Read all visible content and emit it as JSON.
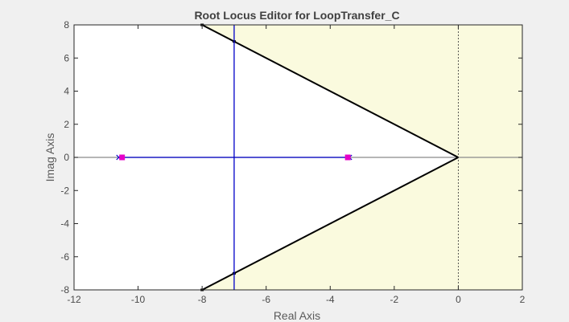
{
  "chart_data": {
    "type": "root-locus",
    "title": "Root Locus Editor for LoopTransfer_C",
    "xlabel": "Real Axis",
    "ylabel": "Imag Axis",
    "xlim": [
      -12,
      2
    ],
    "ylim": [
      -8,
      8
    ],
    "xticks": [
      -12,
      -10,
      -8,
      -6,
      -4,
      -2,
      0,
      2
    ],
    "yticks": [
      -8,
      -6,
      -4,
      -2,
      0,
      2,
      4,
      6,
      8
    ],
    "grid": false,
    "poles": [
      {
        "re": -10.6,
        "im": 0
      },
      {
        "re": -3.4,
        "im": 0
      }
    ],
    "closed_loop_poles": [
      {
        "re": -10.5,
        "im": 0
      },
      {
        "re": -3.45,
        "im": 0
      }
    ],
    "locus_branches": [
      {
        "name": "",
        "points": [
          [
            -10.6,
            0
          ],
          [
            -3.4,
            0
          ]
        ]
      },
      {
        "name": "",
        "points": [
          [
            -7,
            0
          ],
          [
            -7,
            8
          ]
        ]
      },
      {
        "name": "",
        "points": [
          [
            -7,
            0
          ],
          [
            -7,
            -8
          ]
        ]
      }
    ],
    "stability_boundary_lines": [
      {
        "points": [
          [
            0,
            0
          ],
          [
            -8,
            8
          ]
        ]
      },
      {
        "points": [
          [
            0,
            0
          ],
          [
            -8,
            -8
          ]
        ]
      }
    ],
    "shaded_region": {
      "description_color": "#fafade"
    },
    "colors": {
      "locus": "#0000c8",
      "pole_marker": "#0000c8",
      "closed_loop_marker": "#e600c8",
      "boundary": "#000000",
      "shade": "#fafade",
      "plot_bg": "#ffffff",
      "figure_bg": "#f0f0f0"
    }
  }
}
